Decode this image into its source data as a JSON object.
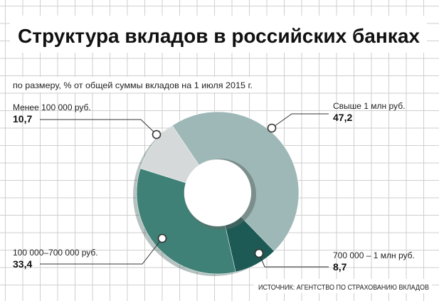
{
  "chart_data": {
    "type": "pie",
    "title": "Структура вкладов в российских банках",
    "subtitle": "по размеру, % от общей суммы вкладов на 1 июля 2015 г.",
    "source": "ИСТОЧНИК: АГЕНТСТВО ПО СТРАХОВАНИЮ ВКЛАДОВ",
    "slices": [
      {
        "label": "Свыше 1 млн руб.",
        "value_text": "47,2",
        "value": 47.2,
        "color": "#9db8b6"
      },
      {
        "label": "700 000 – 1 млн руб.",
        "value_text": "8,7",
        "value": 8.7,
        "color": "#1e5a55"
      },
      {
        "label": "100 000–700 000 руб.",
        "value_text": "33,4",
        "value": 33.4,
        "color": "#3f8077"
      },
      {
        "label": "Менее 100 000 руб.",
        "value_text": "10,7",
        "value": 10.7,
        "color": "#d5d9d9"
      }
    ],
    "grid": true,
    "legend": "callouts"
  }
}
